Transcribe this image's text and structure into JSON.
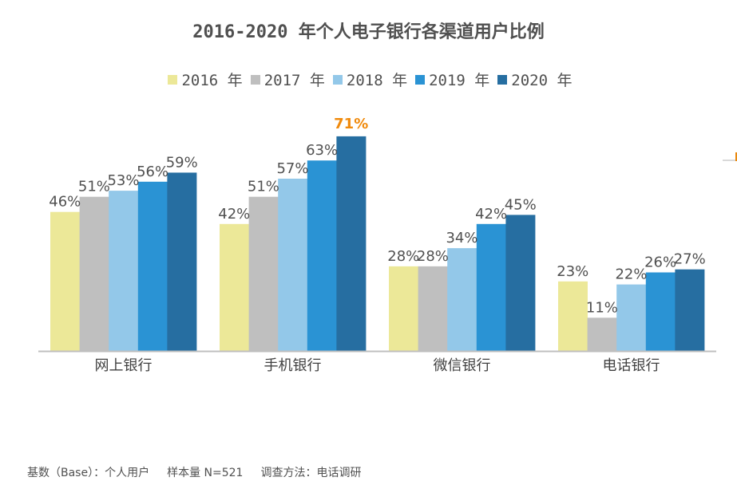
{
  "chart_data": {
    "type": "bar",
    "title": "2016-2020 年个人电子银行各渠道用户比例",
    "categories": [
      "网上银行",
      "手机银行",
      "微信银行",
      "电话银行"
    ],
    "series": [
      {
        "name": "2016 年",
        "color": "#ECE898",
        "values": [
          46,
          42,
          28,
          23
        ],
        "labels": [
          "46%",
          "42%",
          "28%",
          "23%"
        ]
      },
      {
        "name": "2017 年",
        "color": "#BFBFBF",
        "values": [
          51,
          51,
          28,
          11
        ],
        "labels": [
          "51%",
          "51%",
          "28%",
          "11%"
        ]
      },
      {
        "name": "2018 年",
        "color": "#93C8E9",
        "values": [
          53,
          57,
          34,
          22
        ],
        "labels": [
          "53%",
          "57%",
          "34%",
          "22%"
        ]
      },
      {
        "name": "2019 年",
        "color": "#2A93D4",
        "values": [
          56,
          63,
          42,
          26
        ],
        "labels": [
          "56%",
          "63%",
          "42%",
          "26%"
        ]
      },
      {
        "name": "2020 年",
        "color": "#266EA1",
        "values": [
          59,
          71,
          45,
          27
        ],
        "labels": [
          "59%",
          "71%",
          "45%",
          "27%"
        ]
      }
    ],
    "highlight": {
      "series": 4,
      "category": 1,
      "color": "#F08A0C"
    },
    "label_color": "#505050",
    "xlabel": "",
    "ylabel": "",
    "ylim": [
      0,
      100
    ],
    "unit": "%",
    "grid": false,
    "legend_position": "top-center"
  },
  "footer": {
    "base": "基数（Base）：个人用户",
    "sample": "样本量 N=521",
    "method": "调查方法：电话调研"
  }
}
